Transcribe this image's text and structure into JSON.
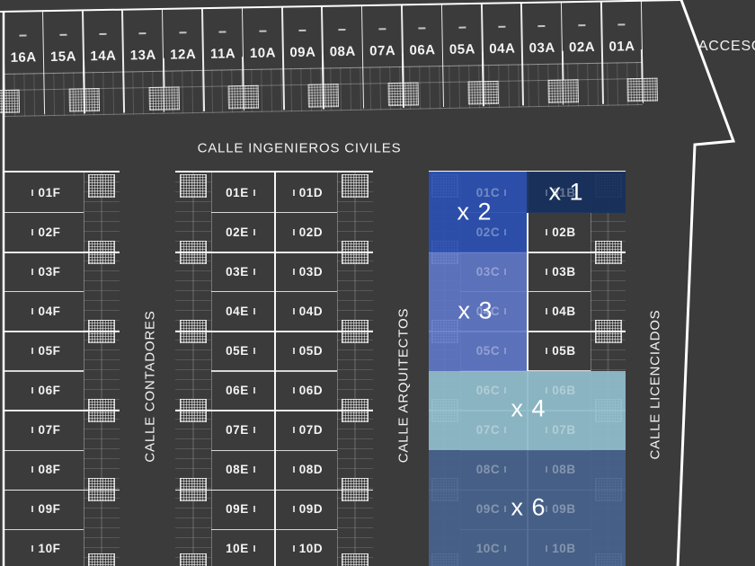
{
  "colors": {
    "background": "#3b3b3b",
    "line": "#ffffff",
    "overlay_x1": "#17305c",
    "overlay_x2": "#2b50b2",
    "overlay_x3": "#5f78c9",
    "overlay_x4": "#8fbcca",
    "overlay_x6": "#47628c"
  },
  "streets": {
    "ingenieros": "CALLE INGENIEROS CIVILES",
    "contadores": "CALLE CONTADORES",
    "arquitectos": "CALLE ARQUITECTOS",
    "licenciados": "CALLE LICENCIADOS",
    "acceso": "ACCESO"
  },
  "row_a": {
    "lots": [
      "16A",
      "15A",
      "14A",
      "13A",
      "12A",
      "11A",
      "10A",
      "09A",
      "08A",
      "07A",
      "06A",
      "05A",
      "04A",
      "03A",
      "02A",
      "01A"
    ]
  },
  "columns": {
    "f": [
      "01F",
      "02F",
      "03F",
      "04F",
      "05F",
      "06F",
      "07F",
      "08F",
      "09F",
      "10F"
    ],
    "e": [
      "01E",
      "02E",
      "03E",
      "04E",
      "05E",
      "06E",
      "07E",
      "08E",
      "09E",
      "10E"
    ],
    "d": [
      "01D",
      "02D",
      "03D",
      "04D",
      "05D",
      "06D",
      "07D",
      "08D",
      "09D",
      "10D"
    ],
    "c": [
      "01C",
      "02C",
      "03C",
      "04C",
      "05C",
      "06C",
      "07C",
      "08C",
      "09C",
      "10C"
    ],
    "b": [
      "01B",
      "02B",
      "03B",
      "04B",
      "05B",
      "06B",
      "07B",
      "08B",
      "09B",
      "10B"
    ]
  },
  "overlays": [
    {
      "id": "x1",
      "label": "x 1",
      "color": "#17305c",
      "covers": [
        "01B"
      ]
    },
    {
      "id": "x2",
      "label": "x 2",
      "color": "#2b50b2",
      "covers": [
        "01C",
        "02C"
      ]
    },
    {
      "id": "x3",
      "label": "x 3",
      "color": "#5f78c9",
      "covers": [
        "03C",
        "04C",
        "05C"
      ]
    },
    {
      "id": "x4",
      "label": "x 4",
      "color": "#8fbcca",
      "covers": [
        "06C",
        "07C",
        "06B",
        "07B"
      ]
    },
    {
      "id": "x6",
      "label": "x 6",
      "color": "#47628c",
      "covers": [
        "08C",
        "09C",
        "10C",
        "08B",
        "09B",
        "10B"
      ]
    }
  ]
}
